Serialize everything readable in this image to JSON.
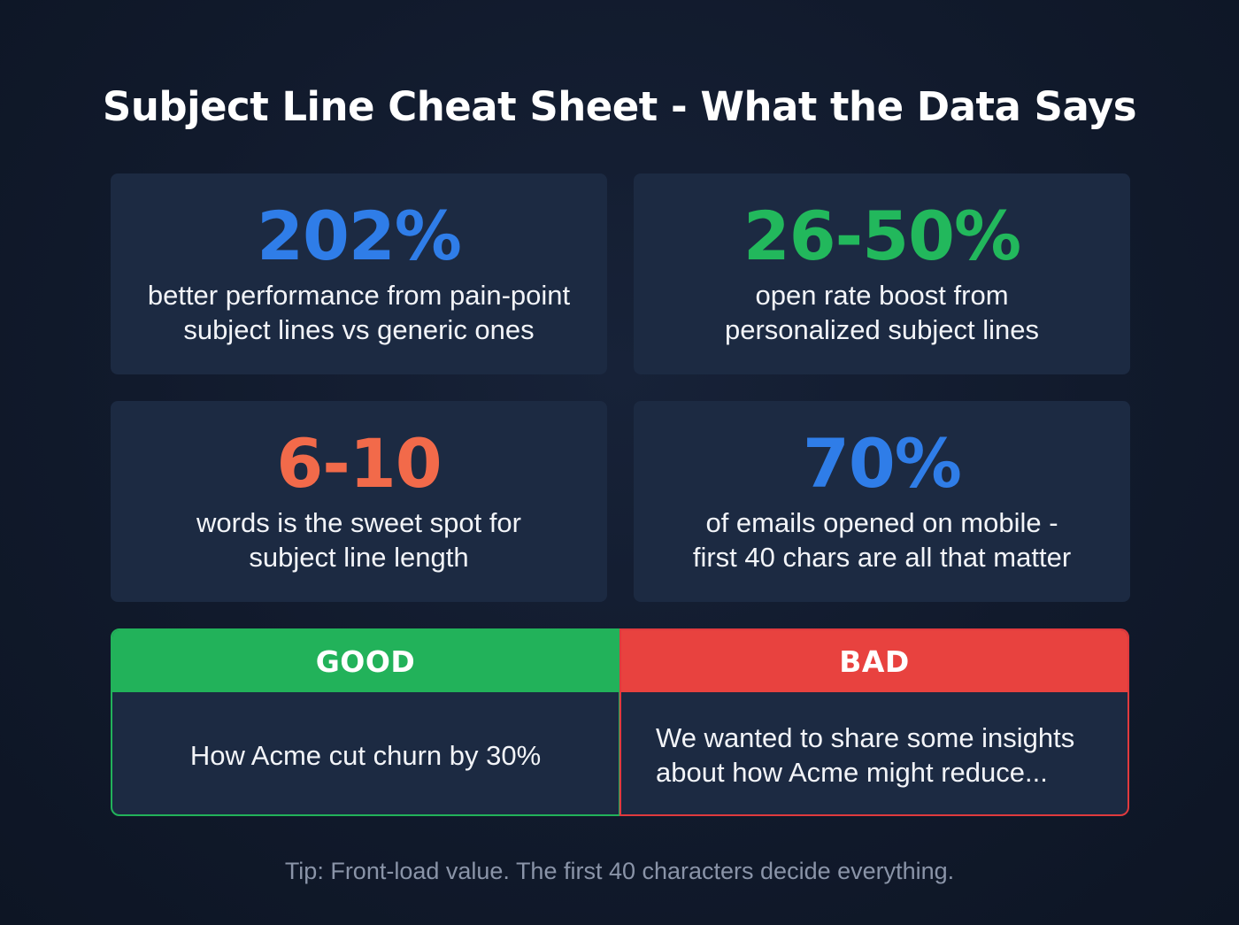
{
  "title": "Subject Line Cheat Sheet - What the Data Says",
  "stats": [
    {
      "value": "202%",
      "color": "#2f7de8",
      "lines": [
        "better performance from pain-point",
        "subject lines vs generic ones"
      ]
    },
    {
      "value": "26-50%",
      "color": "#22b85c",
      "lines": [
        "open rate boost from",
        "personalized subject lines"
      ]
    },
    {
      "value": "6-10",
      "color": "#f26a4a",
      "lines": [
        "words is the sweet spot for",
        "subject line length"
      ]
    },
    {
      "value": "70%",
      "color": "#2f7de8",
      "lines": [
        "of emails opened on mobile -",
        "first 40 chars are all that matter"
      ]
    }
  ],
  "comparison": {
    "good": {
      "label": "GOOD",
      "color": "#22b25a",
      "example": "How Acme cut churn by 30%"
    },
    "bad": {
      "label": "BAD",
      "color": "#e8423f",
      "lines": [
        "We wanted to share some insights",
        "about how Acme might reduce..."
      ]
    }
  },
  "tip": "Tip: Front-load value. The first 40 characters decide everything."
}
